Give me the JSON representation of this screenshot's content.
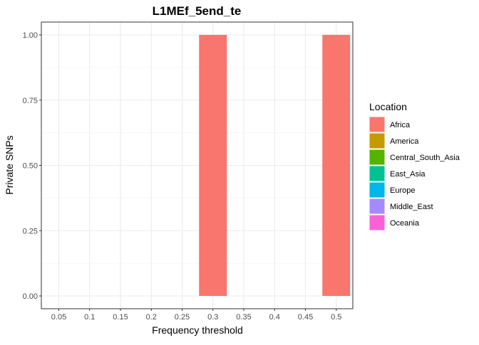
{
  "chart_data": {
    "type": "bar",
    "title": "L1MEf_5end_te",
    "xlabel": "Frequency threshold",
    "ylabel": "Private SNPs",
    "categories": [
      "0.05",
      "0.1",
      "0.15",
      "0.2",
      "0.25",
      "0.3",
      "0.35",
      "0.4",
      "0.45",
      "0.5"
    ],
    "yticks": [
      "0.00",
      "0.25",
      "0.50",
      "0.75",
      "1.00"
    ],
    "ylim": [
      0,
      1
    ],
    "grid": true,
    "legend_position": "right",
    "legend_title": "Location",
    "series": [
      {
        "name": "Africa",
        "color": "#F8766D",
        "values": [
          0,
          0,
          0,
          0,
          0,
          1,
          0,
          0,
          0,
          1
        ]
      },
      {
        "name": "America",
        "color": "#C49A00",
        "values": [
          0,
          0,
          0,
          0,
          0,
          0,
          0,
          0,
          0,
          0
        ]
      },
      {
        "name": "Central_South_Asia",
        "color": "#53B400",
        "values": [
          0,
          0,
          0,
          0,
          0,
          0,
          0,
          0,
          0,
          0
        ]
      },
      {
        "name": "East_Asia",
        "color": "#00C094",
        "values": [
          0,
          0,
          0,
          0,
          0,
          0,
          0,
          0,
          0,
          0
        ]
      },
      {
        "name": "Europe",
        "color": "#00B6EB",
        "values": [
          0,
          0,
          0,
          0,
          0,
          0,
          0,
          0,
          0,
          0
        ]
      },
      {
        "name": "Middle_East",
        "color": "#A58AFF",
        "values": [
          0,
          0,
          0,
          0,
          0,
          0,
          0,
          0,
          0,
          0
        ]
      },
      {
        "name": "Oceania",
        "color": "#FB61D7",
        "values": [
          0,
          0,
          0,
          0,
          0,
          0,
          0,
          0,
          0,
          0
        ]
      }
    ]
  }
}
